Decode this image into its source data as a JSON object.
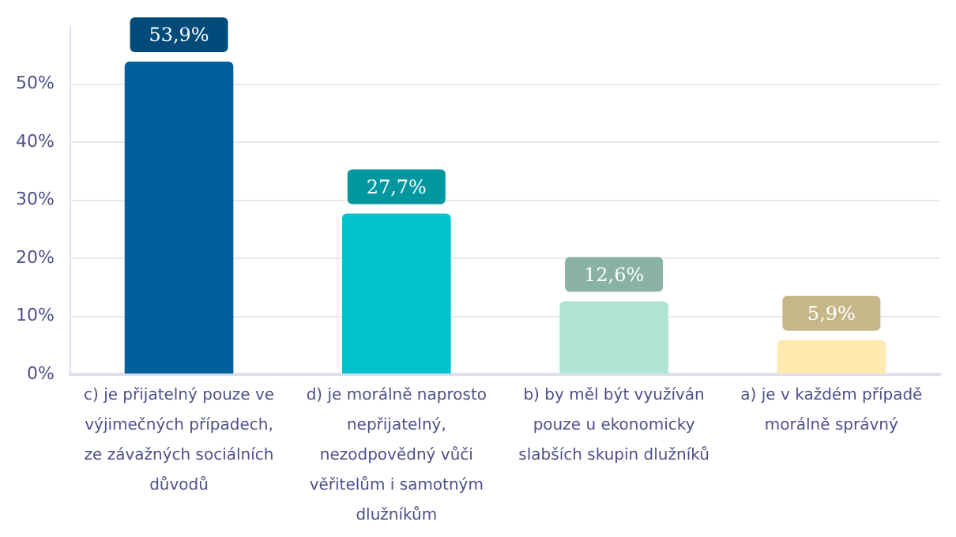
{
  "chart_data": {
    "type": "bar",
    "categories": [
      "c) je přijatelný pouze ve výjimečných případech, ze závažných sociálních důvodů",
      "d) je morálně naprosto nepřijatelný, nezodpovědný vůči věřitelům i samotným dlužníkům",
      "b) by měl být využíván pouze u ekonomicky slabších skupin dlužníků",
      "a) je v každém případě morálně správný"
    ],
    "values": [
      53.9,
      27.7,
      12.6,
      5.9
    ],
    "colors": [
      "#00609c",
      "#00c2cb",
      "#b0e3d2",
      "#feeaaf"
    ],
    "value_labels": [
      "53,9%",
      "27,7%",
      "12,6%",
      "5,9%"
    ],
    "ylim": [
      0,
      60
    ],
    "yticks": [
      {
        "value": 0,
        "label": "0%"
      },
      {
        "value": 10,
        "label": "10%"
      },
      {
        "value": 20,
        "label": "20%"
      },
      {
        "value": 30,
        "label": "30%"
      },
      {
        "value": 40,
        "label": "40%"
      },
      {
        "value": 50,
        "label": "50%"
      }
    ],
    "grid": "y",
    "legend": false
  }
}
